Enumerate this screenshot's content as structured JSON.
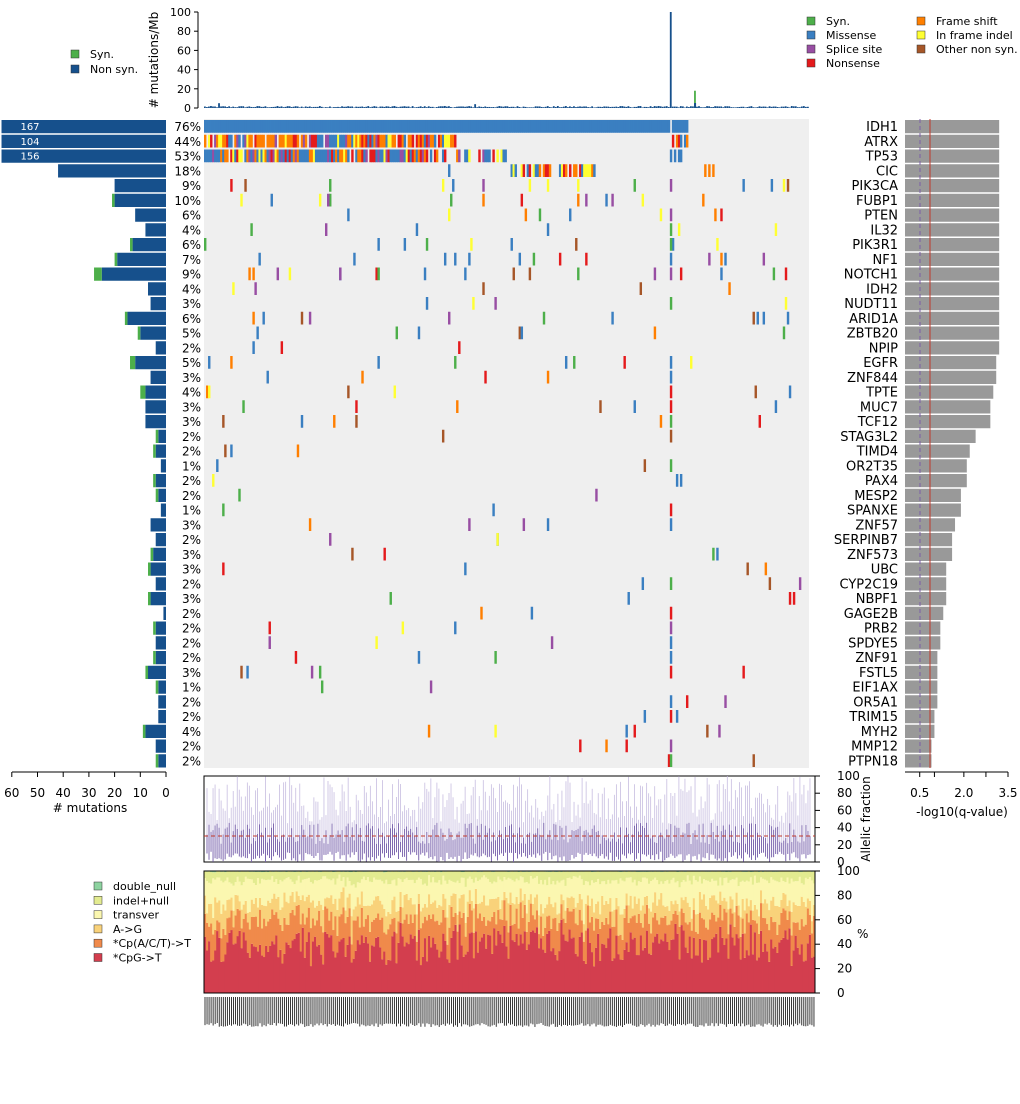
{
  "chart_data": {
    "type": "oncoplot",
    "legend_top_left": [
      {
        "label": "Syn.",
        "color": "#4daf4a"
      },
      {
        "label": "Non syn.",
        "color": "#16508c"
      }
    ],
    "legend_top_right": [
      {
        "label": "Syn.",
        "color": "#4daf4a"
      },
      {
        "label": "Missense",
        "color": "#3a7fc1"
      },
      {
        "label": "Splice site",
        "color": "#984ea3"
      },
      {
        "label": "Nonsense",
        "color": "#e41a1c"
      },
      {
        "label": "Frame shift",
        "color": "#ff7f00"
      },
      {
        "label": "In frame indel",
        "color": "#ffff33"
      },
      {
        "label": "Other non syn.",
        "color": "#a65628"
      }
    ],
    "mutation_rate": {
      "ylabel": "# mutations/Mb",
      "ylim": [
        0,
        100
      ],
      "ticks": [
        0,
        20,
        40,
        60,
        80,
        100
      ]
    },
    "genes": [
      {
        "gene": "IDH1",
        "pct": "76%",
        "count": 167,
        "syn": 0,
        "q": 3.2
      },
      {
        "gene": "ATRX",
        "pct": "44%",
        "count": 104,
        "syn": 0,
        "q": 3.2
      },
      {
        "gene": "TP53",
        "pct": "53%",
        "count": 156,
        "syn": 0,
        "q": 3.2
      },
      {
        "gene": "CIC",
        "pct": "18%",
        "count": 42,
        "syn": 0,
        "q": 3.2
      },
      {
        "gene": "PIK3CA",
        "pct": "9%",
        "count": 20,
        "syn": 0,
        "q": 3.2
      },
      {
        "gene": "FUBP1",
        "pct": "10%",
        "count": 20,
        "syn": 1,
        "q": 3.2
      },
      {
        "gene": "PTEN",
        "pct": "6%",
        "count": 12,
        "syn": 0,
        "q": 3.2
      },
      {
        "gene": "IL32",
        "pct": "4%",
        "count": 8,
        "syn": 0,
        "q": 3.2
      },
      {
        "gene": "PIK3R1",
        "pct": "6%",
        "count": 13,
        "syn": 1,
        "q": 3.2
      },
      {
        "gene": "NF1",
        "pct": "7%",
        "count": 19,
        "syn": 1,
        "q": 3.2
      },
      {
        "gene": "NOTCH1",
        "pct": "9%",
        "count": 25,
        "syn": 3,
        "q": 3.2
      },
      {
        "gene": "IDH2",
        "pct": "4%",
        "count": 7,
        "syn": 0,
        "q": 3.2
      },
      {
        "gene": "NUDT11",
        "pct": "3%",
        "count": 6,
        "syn": 0,
        "q": 3.2
      },
      {
        "gene": "ARID1A",
        "pct": "6%",
        "count": 15,
        "syn": 1,
        "q": 3.2
      },
      {
        "gene": "ZBTB20",
        "pct": "5%",
        "count": 10,
        "syn": 1,
        "q": 3.2
      },
      {
        "gene": "NPIP",
        "pct": "2%",
        "count": 4,
        "syn": 0,
        "q": 3.2
      },
      {
        "gene": "EGFR",
        "pct": "5%",
        "count": 12,
        "syn": 2,
        "q": 3.1
      },
      {
        "gene": "ZNF844",
        "pct": "3%",
        "count": 6,
        "syn": 0,
        "q": 3.1
      },
      {
        "gene": "TPTE",
        "pct": "4%",
        "count": 8,
        "syn": 2,
        "q": 3.0
      },
      {
        "gene": "MUC7",
        "pct": "3%",
        "count": 8,
        "syn": 0,
        "q": 2.9
      },
      {
        "gene": "TCF12",
        "pct": "3%",
        "count": 8,
        "syn": 0,
        "q": 2.9
      },
      {
        "gene": "STAG3L2",
        "pct": "2%",
        "count": 3,
        "syn": 1,
        "q": 2.4
      },
      {
        "gene": "TIMD4",
        "pct": "2%",
        "count": 4,
        "syn": 1,
        "q": 2.2
      },
      {
        "gene": "OR2T35",
        "pct": "1%",
        "count": 2,
        "syn": 0,
        "q": 2.1
      },
      {
        "gene": "PAX4",
        "pct": "2%",
        "count": 4,
        "syn": 1,
        "q": 2.1
      },
      {
        "gene": "MESP2",
        "pct": "2%",
        "count": 3,
        "syn": 1,
        "q": 1.9
      },
      {
        "gene": "SPANXE",
        "pct": "1%",
        "count": 2,
        "syn": 0,
        "q": 1.9
      },
      {
        "gene": "ZNF57",
        "pct": "3%",
        "count": 6,
        "syn": 0,
        "q": 1.7
      },
      {
        "gene": "SERPINB7",
        "pct": "2%",
        "count": 4,
        "syn": 0,
        "q": 1.6
      },
      {
        "gene": "ZNF573",
        "pct": "3%",
        "count": 5,
        "syn": 1,
        "q": 1.6
      },
      {
        "gene": "UBC",
        "pct": "3%",
        "count": 6,
        "syn": 1,
        "q": 1.4
      },
      {
        "gene": "CYP2C19",
        "pct": "2%",
        "count": 4,
        "syn": 0,
        "q": 1.4
      },
      {
        "gene": "NBPF1",
        "pct": "3%",
        "count": 6,
        "syn": 1,
        "q": 1.4
      },
      {
        "gene": "GAGE2B",
        "pct": "2%",
        "count": 1,
        "syn": 0,
        "q": 1.3
      },
      {
        "gene": "PRB2",
        "pct": "2%",
        "count": 4,
        "syn": 1,
        "q": 1.2
      },
      {
        "gene": "SPDYE5",
        "pct": "2%",
        "count": 4,
        "syn": 0,
        "q": 1.2
      },
      {
        "gene": "ZNF91",
        "pct": "2%",
        "count": 4,
        "syn": 1,
        "q": 1.1
      },
      {
        "gene": "FSTL5",
        "pct": "3%",
        "count": 7,
        "syn": 1,
        "q": 1.1
      },
      {
        "gene": "EIF1AX",
        "pct": "1%",
        "count": 3,
        "syn": 1,
        "q": 1.1
      },
      {
        "gene": "OR5A1",
        "pct": "2%",
        "count": 3,
        "syn": 0,
        "q": 1.1
      },
      {
        "gene": "TRIM15",
        "pct": "2%",
        "count": 3,
        "syn": 0,
        "q": 1.0
      },
      {
        "gene": "MYH2",
        "pct": "4%",
        "count": 8,
        "syn": 1,
        "q": 1.0
      },
      {
        "gene": "MMP12",
        "pct": "2%",
        "count": 4,
        "syn": 0,
        "q": 0.9
      },
      {
        "gene": "PTPN18",
        "pct": "2%",
        "count": 3,
        "syn": 1,
        "q": 0.9
      }
    ],
    "left_axis": {
      "xlabel": "# mutations",
      "ticks": [
        60,
        50,
        40,
        30,
        20,
        10,
        0
      ]
    },
    "right_axis": {
      "xlabel": "-log10(q-value)",
      "ticks": [
        "0.5",
        "2.0",
        "3.5"
      ],
      "xlim": [
        0,
        3.5
      ],
      "dashed_line": 0.5,
      "red_line": 1.0
    },
    "allelic_fraction": {
      "ylabel": "Allelic fraction",
      "ticks": [
        0,
        20,
        40,
        60,
        80,
        100
      ],
      "median_line": 30
    },
    "spectrum": {
      "ylabel": "%",
      "ticks": [
        0,
        20,
        40,
        60,
        80,
        100
      ],
      "categories": [
        {
          "label": "double_null",
          "color": "#8dd3a0",
          "mean": 0.5
        },
        {
          "label": "indel+null",
          "color": "#e3eb90",
          "mean": 7
        },
        {
          "label": "transver",
          "color": "#fbf7b0",
          "mean": 18
        },
        {
          "label": "A->G",
          "color": "#f9d27a",
          "mean": 14
        },
        {
          "label": "*Cp(A/C/T)->T",
          "color": "#f08a4b",
          "mean": 20
        },
        {
          "label": "*CpG->T",
          "color": "#d33e4e",
          "mean": 40
        }
      ]
    }
  }
}
